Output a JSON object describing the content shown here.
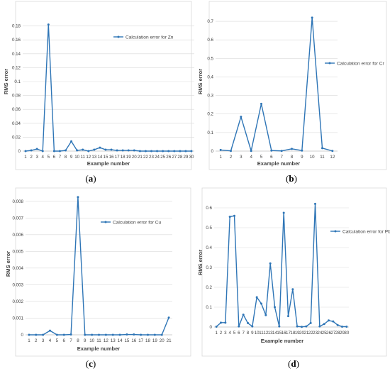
{
  "chart_data": [
    {
      "type": "line",
      "panel_label": "a",
      "xlabel": "Example number",
      "ylabel": "RMS error",
      "ylim": [
        0,
        0.2
      ],
      "yticks": [
        0,
        0.02,
        0.04,
        0.06,
        0.08,
        0.1,
        0.12,
        0.14,
        0.16,
        0.18
      ],
      "ytick_labels": [
        "0",
        "0.02",
        "0.04",
        "0.06",
        "0.08",
        "0.1",
        "0.12",
        "0.14",
        "0.16",
        "0.18"
      ],
      "legend_position": "right",
      "color": "#2e75b6",
      "categories": [
        "1",
        "2",
        "3",
        "4",
        "5",
        "6",
        "7",
        "8",
        "9",
        "10",
        "11",
        "12",
        "13",
        "14",
        "15",
        "16",
        "17",
        "18",
        "19",
        "20",
        "21",
        "22",
        "23",
        "24",
        "25",
        "26",
        "27",
        "28",
        "29",
        "30"
      ],
      "series": [
        {
          "name": "Calculation error for Zn",
          "values": [
            0,
            0.001,
            0.003,
            0,
            0.182,
            0,
            0,
            0.001,
            0.014,
            0.001,
            0.002,
            0,
            0.002,
            0.005,
            0.002,
            0.002,
            0.001,
            0.001,
            0.001,
            0.001,
            0,
            0,
            0,
            0,
            0,
            0,
            0,
            0,
            0,
            0
          ]
        }
      ]
    },
    {
      "type": "line",
      "panel_label": "b",
      "xlabel": "Example number",
      "ylabel": "RMS error",
      "ylim": [
        0,
        0.75
      ],
      "yticks": [
        0,
        0.1,
        0.2,
        0.3,
        0.4,
        0.5,
        0.6,
        0.7
      ],
      "ytick_labels": [
        "0",
        "0.1",
        "0.2",
        "0.3",
        "0.4",
        "0.5",
        "0.6",
        "0.7"
      ],
      "legend_position": "right",
      "color": "#2e75b6",
      "categories": [
        "1",
        "2",
        "3",
        "4",
        "5",
        "6",
        "7",
        "8",
        "9",
        "10",
        "11",
        "12"
      ],
      "series": [
        {
          "name": "Calculation error for Cr",
          "values": [
            0.006,
            0.001,
            0.185,
            0.001,
            0.255,
            0.003,
            0.001,
            0.012,
            0.003,
            0.72,
            0.016,
            0.001
          ]
        }
      ]
    },
    {
      "type": "line",
      "panel_label": "c",
      "xlabel": "Example number",
      "ylabel": "RMS error",
      "ylim": [
        0,
        0.0085
      ],
      "yticks": [
        0,
        0.001,
        0.002,
        0.003,
        0.004,
        0.005,
        0.006,
        0.007,
        0.008
      ],
      "ytick_labels": [
        "0",
        "0.001",
        "0.002",
        "0.003",
        "0.004",
        "0.005",
        "0.006",
        "0.007",
        "0.008"
      ],
      "legend_position": "right",
      "color": "#2e75b6",
      "categories": [
        "1",
        "2",
        "3",
        "4",
        "5",
        "6",
        "7",
        "8",
        "9",
        "10",
        "11",
        "12",
        "13",
        "14",
        "15",
        "16",
        "17",
        "18",
        "19",
        "20",
        "21"
      ],
      "series": [
        {
          "name": "Calculation error for Cu",
          "values": [
            0,
            0,
            0,
            0.00025,
            0,
            0,
            2e-05,
            0.00825,
            0,
            0,
            0,
            0,
            0,
            0,
            2e-05,
            2e-05,
            0,
            0,
            0,
            0,
            0.00103
          ]
        }
      ]
    },
    {
      "type": "line",
      "panel_label": "d",
      "xlabel": "Example number",
      "ylabel": "RMS error",
      "ylim": [
        0,
        0.65
      ],
      "yticks": [
        0,
        0.1,
        0.2,
        0.3,
        0.4,
        0.5,
        0.6
      ],
      "ytick_labels": [
        "0",
        "0.1",
        "0.2",
        "0.3",
        "0.4",
        "0.5",
        "0.6"
      ],
      "legend_position": "right",
      "color": "#2e75b6",
      "categories": [
        "1",
        "2",
        "3",
        "4",
        "5",
        "6",
        "7",
        "8",
        "9",
        "10",
        "11",
        "12",
        "13",
        "14",
        "15",
        "16",
        "17",
        "18",
        "19",
        "20",
        "21",
        "22",
        "23",
        "24",
        "25",
        "26",
        "27",
        "28",
        "29",
        "30"
      ],
      "series": [
        {
          "name": "Calculation error for Pb",
          "values": [
            0.002,
            0.022,
            0.022,
            0.555,
            0.56,
            0.003,
            0.062,
            0.02,
            0.003,
            0.15,
            0.118,
            0.06,
            0.32,
            0.1,
            0.003,
            0.575,
            0.055,
            0.19,
            0.003,
            0.001,
            0.003,
            0.02,
            0.62,
            0.003,
            0.015,
            0.033,
            0.028,
            0.01,
            0.002,
            0.002
          ]
        }
      ]
    }
  ]
}
